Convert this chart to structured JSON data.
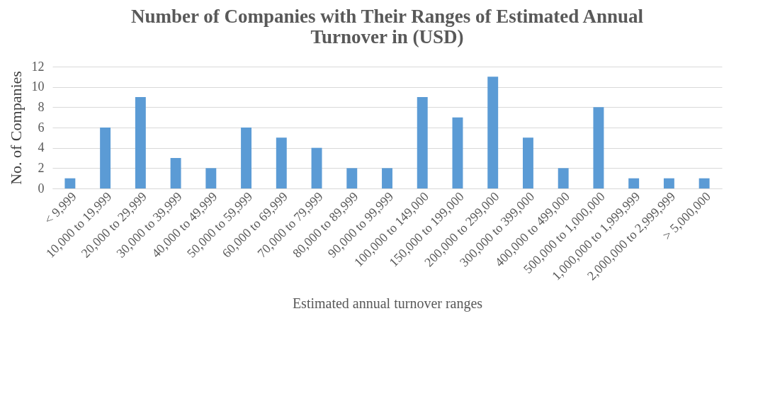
{
  "chart_data": {
    "type": "bar",
    "title": "Number of Companies with Their Ranges of Estimated Annual Turnover in (USD)",
    "xlabel": "Estimated annual turnover ranges",
    "ylabel": "No. of Companies",
    "categories": [
      "< 9,999",
      "10,000 to 19,999",
      "20,000 to 29,999",
      "30,000 to 39,999",
      "40,000 to 49,999",
      "50,000 to 59,999",
      "60,000 to 69,999",
      "70,000 to 79,999",
      "80,000 to 89,999",
      "90,000 to 99,999",
      "100,000 to 149,000",
      "150,000 to 199,000",
      "200,000 to 299,000",
      "300,000 to 399,000",
      "400,000 to 499,000",
      "500,000 to 1,000,000",
      "1,000,000 to 1,999,999",
      "2,000,000 to 2,999,999",
      "> 5,000,000"
    ],
    "values": [
      1,
      6,
      9,
      3,
      2,
      6,
      5,
      4,
      2,
      2,
      9,
      7,
      11,
      5,
      2,
      8,
      1,
      1,
      1
    ],
    "color": "#5b9bd5",
    "ylim": [
      0,
      12
    ],
    "yticks": [
      0,
      2,
      4,
      6,
      8,
      10,
      12
    ],
    "grid": "y"
  }
}
